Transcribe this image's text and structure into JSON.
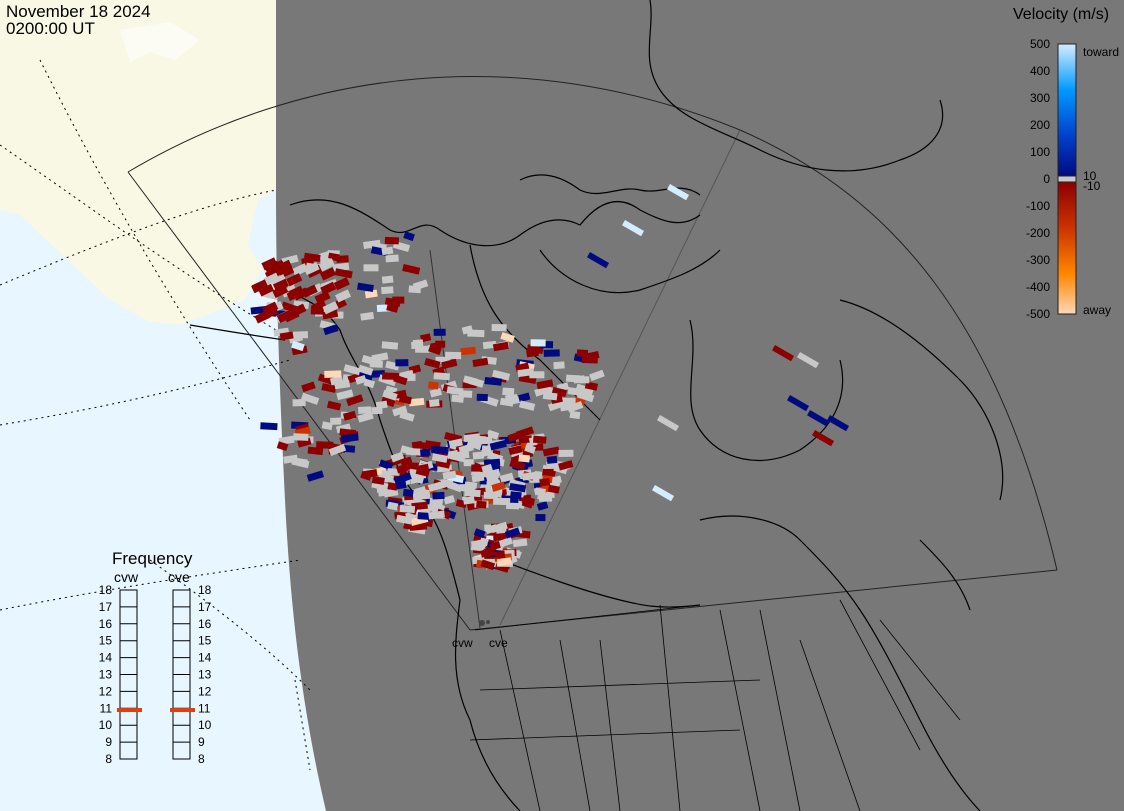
{
  "header": {
    "date": "November 18 2024",
    "time": "0200:00 UT"
  },
  "velocity_scale": {
    "title": "Velocity (m/s)",
    "ticks": [
      "500",
      "400",
      "300",
      "200",
      "100",
      "10",
      "0",
      "-10",
      "-100",
      "-200",
      "-300",
      "-400",
      "-500"
    ],
    "toward_label": "toward",
    "away_label": "away",
    "colors": {
      "toward_max": "#d4ecff",
      "toward_high": "#0099ff",
      "toward_mid": "#0040cc",
      "toward_low": "#000b80",
      "near_zero": "#c8c8c8",
      "away_low": "#8c0000",
      "away_mid": "#cc3300",
      "away_high": "#ff8800",
      "away_max": "#ffd8b8"
    }
  },
  "frequency": {
    "title": "Frequency",
    "radars": [
      "cvw",
      "cve"
    ],
    "scale_values": [
      "18",
      "17",
      "16",
      "15",
      "14",
      "13",
      "12",
      "11",
      "10",
      "9",
      "8"
    ],
    "cvw_mhz": 10.9,
    "cve_mhz": 10.9
  },
  "map": {
    "ocean_color": "#e8f6ff",
    "land_outside_color": "#f8f8e4",
    "night_color": "#787878",
    "coast_color": "#000000",
    "site_labels": [
      "cvw",
      "cve"
    ]
  }
}
